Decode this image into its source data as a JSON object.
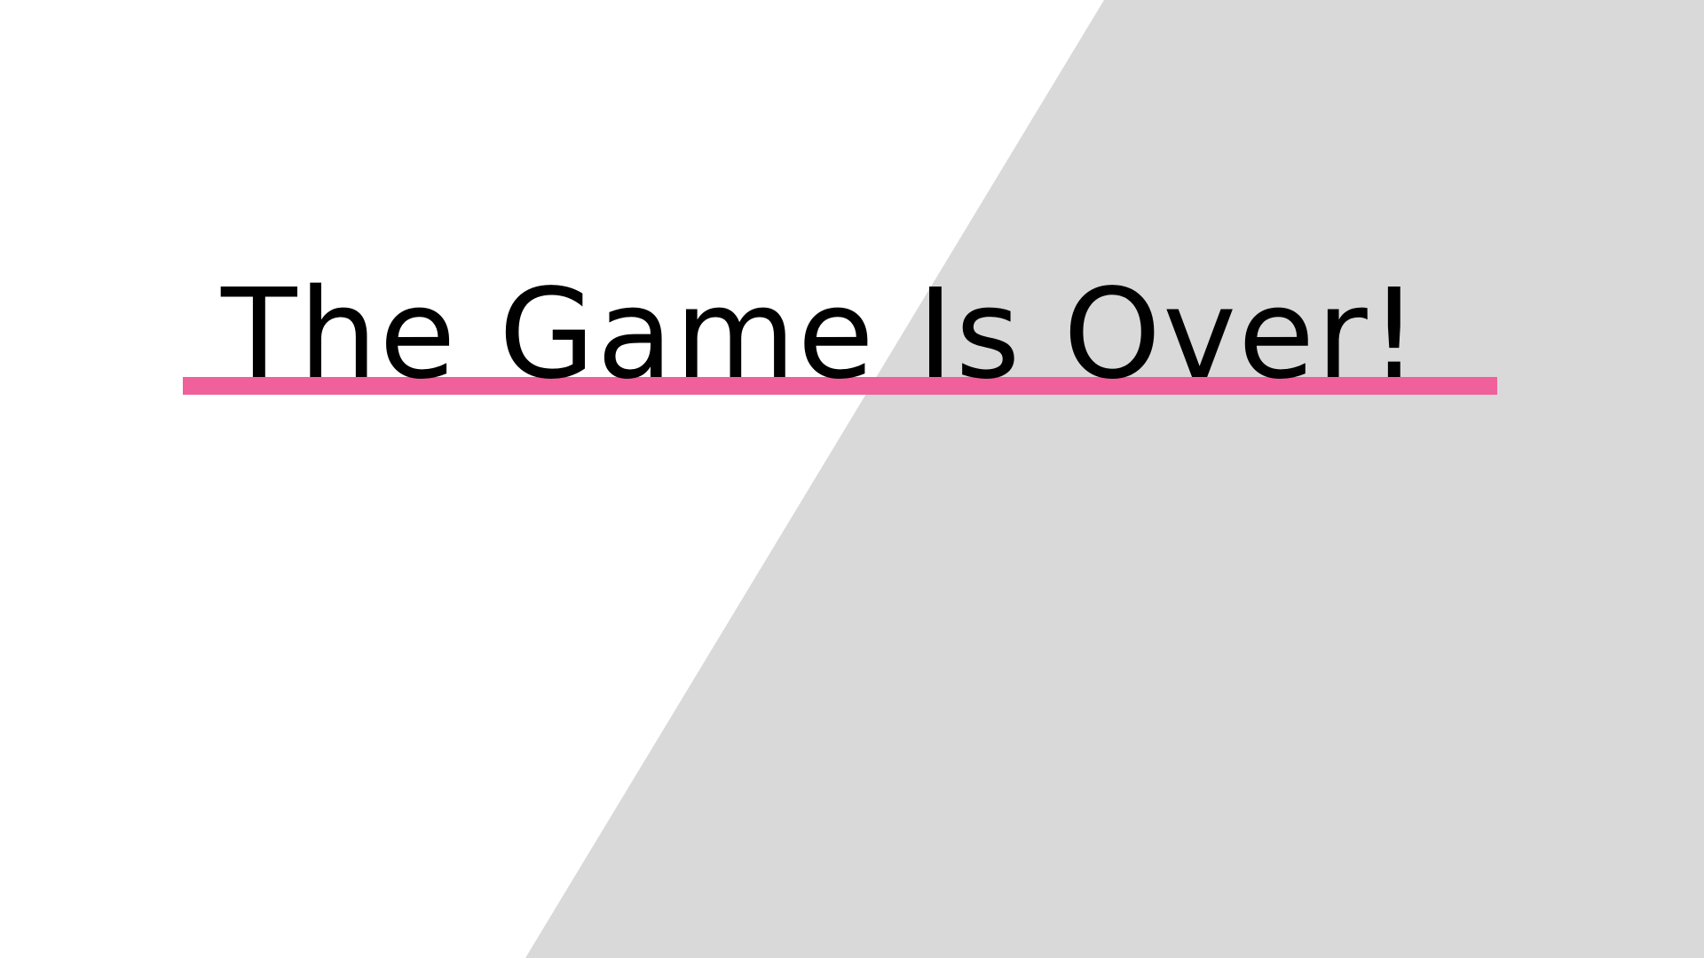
{
  "screen": {
    "title": "The Game Is Over!"
  },
  "colors": {
    "background": "#ffffff",
    "panel": "#d9d9d9",
    "accent": "#f0609a",
    "text": "#000000"
  }
}
